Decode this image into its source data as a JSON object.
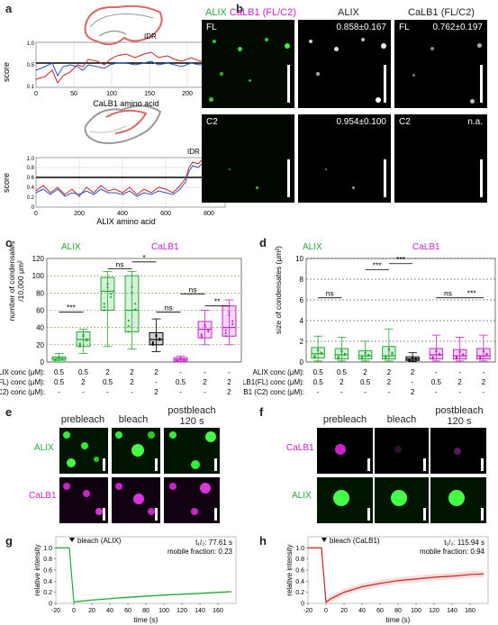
{
  "panels": {
    "a": "a",
    "b": "b",
    "c": "c",
    "d": "d",
    "e": "e",
    "f": "f",
    "g": "g",
    "h": "h"
  },
  "colors": {
    "alix": "#22aa33",
    "calb1": "#cc22cc",
    "red": "#cc2222",
    "blue": "#2255cc"
  },
  "a": {
    "ylabel": "score",
    "top": {
      "xlabel": "CaLB1 amino acid",
      "idr": "IDR",
      "xticks": [
        "0",
        "50",
        "100",
        "150",
        "200",
        "250"
      ],
      "yticks": [
        "0.1",
        "0.2",
        "0.3",
        "0.4",
        "0.5",
        "0.6",
        "0.7",
        "0.8",
        "0.9",
        "1.0"
      ]
    },
    "bottom": {
      "xlabel": "ALIX amino acid",
      "idr": "IDR",
      "xticks": [
        "0",
        "200",
        "400",
        "600",
        "800"
      ],
      "yticks": [
        "0",
        "0.2",
        "0.4",
        "0.6",
        "0.8",
        "1.0"
      ]
    }
  },
  "b": {
    "col1_alix": "ALIX",
    "col1_calb": "CaLB1 (FL/C2)",
    "col2": "ALIX",
    "col3": "CaLB1 (FL/C2)",
    "row1_label": "FL",
    "row1_v2": "0.858±0.167",
    "row1_label3": "FL",
    "row1_v3": "0.762±0.197",
    "row2_label": "C2",
    "row2_v2": "0.954±0.100",
    "row2_label3": "C2",
    "row2_v3": "n.a."
  },
  "c": {
    "ylabel1": "number of condensates",
    "ylabel2": "/10,000 μm²",
    "alix": "ALIX",
    "calb": "CaLB1",
    "yticks": [
      "0",
      "20",
      "40",
      "60",
      "80",
      "100",
      "120"
    ],
    "rows": [
      {
        "label": "ALIX conc (μM):",
        "vals": [
          "0.5",
          "0.5",
          "2",
          "2",
          "2",
          "-",
          "-",
          "-"
        ]
      },
      {
        "label": "CaLB1(FL) conc (μM):",
        "vals": [
          "0.5",
          "2",
          "0.5",
          "2",
          "-",
          "0.5",
          "2",
          "2"
        ]
      },
      {
        "label": "CaLB1 (C2) conc (μM):",
        "vals": [
          "-",
          "-",
          "-",
          "-",
          "2",
          "-",
          "-",
          "2"
        ]
      }
    ],
    "sig": [
      {
        "t": "***"
      },
      {
        "t": "ns"
      },
      {
        "t": "*"
      },
      {
        "t": "ns"
      },
      {
        "t": "ns"
      },
      {
        "t": "**"
      }
    ]
  },
  "d": {
    "ylabel": "size of condensates (μm²)",
    "alix": "ALIX",
    "calb": "CaLB1",
    "yticks": [
      "0",
      "2",
      "4",
      "6",
      "8",
      "10"
    ],
    "rows": [
      {
        "label": "ALIX conc (μM):",
        "vals": [
          "0.5",
          "0.5",
          "2",
          "2",
          "2",
          "-",
          "-",
          "-"
        ]
      },
      {
        "label": "CaLB1(FL) conc (μM):",
        "vals": [
          "0.5",
          "2",
          "0.5",
          "2",
          "-",
          "0.5",
          "2",
          "2"
        ]
      },
      {
        "label": "CaLB1 (C2) conc (μM):",
        "vals": [
          "-",
          "-",
          "-",
          "-",
          "2",
          "-",
          "-",
          "-"
        ]
      }
    ],
    "sig": [
      {
        "t": "ns"
      },
      {
        "t": "***"
      },
      {
        "t": "***"
      },
      {
        "t": "ns"
      },
      {
        "t": "***"
      }
    ]
  },
  "e": {
    "pre": "prebleach",
    "bleach": "bleach",
    "post1": "postbleach",
    "post2": "120 s",
    "row1": "ALIX",
    "row2": "CaLB1"
  },
  "f": {
    "pre": "prebleach",
    "bleach": "bleach",
    "post1": "postbleach",
    "post2": "120 s",
    "row1": "CaLB1",
    "row2": "ALIX"
  },
  "g": {
    "title": "bleach (ALIX)",
    "t12": "t₁/₂: 77.61 s",
    "mobile": "mobile fraction: 0.23",
    "ylabel": "relative intensity",
    "xlabel": "time (s)",
    "xticks": [
      "-20",
      "0",
      "20",
      "40",
      "60",
      "80",
      "100",
      "120",
      "140",
      "160"
    ],
    "yticks": [
      "0",
      "0.2",
      "0.4",
      "0.6",
      "0.8",
      "1.0"
    ]
  },
  "h": {
    "title": "bleach (CaLB1)",
    "t12": "t₁/₂: 115.94 s",
    "mobile": "mobile fraction: 0.94",
    "ylabel": "relative intensity",
    "xlabel": "time (s)",
    "xticks": [
      "-20",
      "0",
      "20",
      "40",
      "60",
      "80",
      "100",
      "120",
      "140",
      "160"
    ],
    "yticks": [
      "0",
      "0.2",
      "0.4",
      "0.6",
      "0.8",
      "1.0"
    ]
  },
  "chart_data": [
    {
      "type": "line",
      "panel": "g",
      "x": [
        -20,
        -5,
        0,
        2,
        20,
        60,
        100,
        140,
        175
      ],
      "series": [
        {
          "values": [
            1.0,
            1.0,
            0.02,
            0.03,
            0.06,
            0.11,
            0.15,
            0.18,
            0.21
          ]
        }
      ],
      "xlabel": "time (s)",
      "ylabel": "relative intensity",
      "ylim": [
        0,
        1.2
      ],
      "xlim": [
        -20,
        180
      ]
    },
    {
      "type": "line",
      "panel": "h",
      "x": [
        -20,
        -5,
        0,
        5,
        20,
        40,
        60,
        80,
        100,
        120,
        140,
        160,
        175
      ],
      "series": [
        {
          "values": [
            1.0,
            1.0,
            0.02,
            0.08,
            0.2,
            0.3,
            0.36,
            0.41,
            0.44,
            0.47,
            0.49,
            0.52,
            0.53
          ]
        }
      ],
      "xlabel": "time (s)",
      "ylabel": "relative intensity",
      "ylim": [
        0,
        1.2
      ],
      "xlim": [
        -20,
        180
      ]
    },
    {
      "type": "box",
      "panel": "c",
      "categories": [
        "1",
        "2",
        "3",
        "4",
        "5",
        "6",
        "7",
        "8"
      ],
      "boxes": [
        [
          0,
          2,
          4,
          6,
          10
        ],
        [
          10,
          18,
          26,
          35,
          38
        ],
        [
          18,
          60,
          82,
          98,
          105
        ],
        [
          15,
          35,
          60,
          100,
          105
        ],
        [
          12,
          20,
          26,
          34,
          50
        ],
        [
          0,
          1,
          3,
          5,
          7
        ],
        [
          20,
          28,
          38,
          47,
          60
        ],
        [
          20,
          30,
          40,
          65,
          72
        ]
      ],
      "ylim": [
        0,
        120
      ]
    },
    {
      "type": "box",
      "panel": "d",
      "categories": [
        "1",
        "2",
        "3",
        "4",
        "5",
        "6",
        "7",
        "8"
      ],
      "boxes": [
        [
          0.1,
          0.4,
          0.8,
          1.4,
          2.5
        ],
        [
          0.1,
          0.3,
          0.7,
          1.3,
          2.4
        ],
        [
          0.1,
          0.3,
          0.6,
          1.1,
          2.0
        ],
        [
          0.1,
          0.3,
          0.6,
          1.5,
          3.2
        ],
        [
          0.05,
          0.15,
          0.3,
          0.5,
          0.9
        ],
        [
          0.1,
          0.3,
          0.7,
          1.3,
          2.6
        ],
        [
          0.1,
          0.3,
          0.6,
          1.2,
          2.4
        ],
        [
          0.1,
          0.3,
          0.6,
          1.3,
          2.6
        ]
      ],
      "ylim": [
        0,
        10
      ]
    }
  ]
}
